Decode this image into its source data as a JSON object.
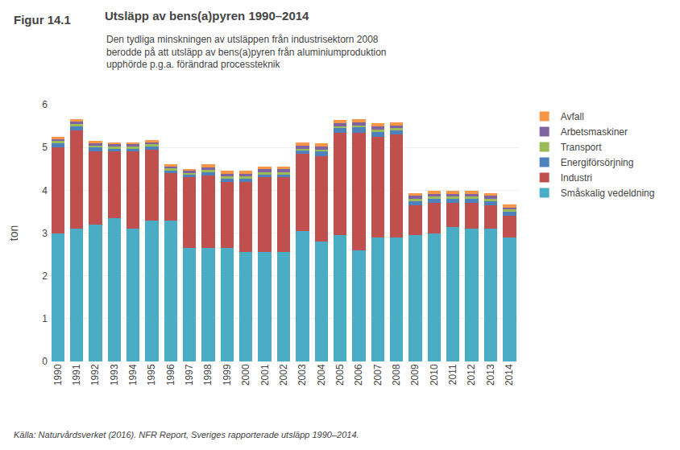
{
  "chart_data": {
    "type": "bar",
    "stacked": true,
    "title": "Utsläpp av bens(a)pyren 1990–2014",
    "subtitle": "Den tydliga minskningen av utsläppen från industrisektorn 2008\nberodde på att utsläpp av bens(a)pyren från aluminiumproduktion\nupphörde p.g.a. förändrad processteknik",
    "annotations": [
      "Figur 14.1",
      "Källa: Naturvårdsverket (2016). NFR Report, Sveriges rapporterade utsläpp 1990–2014."
    ],
    "ylabel": "ton",
    "categories": [
      "1990",
      "1991",
      "1992",
      "1993",
      "1994",
      "1995",
      "1996",
      "1997",
      "1998",
      "1999",
      "2000",
      "2001",
      "2002",
      "2003",
      "2004",
      "2005",
      "2006",
      "2007",
      "2008",
      "2009",
      "2010",
      "2011",
      "2012",
      "2013",
      "2014"
    ],
    "series": [
      {
        "name": "Småskalig vedeldning",
        "color": "#4BACC6",
        "values": [
          3.0,
          3.1,
          3.2,
          3.35,
          3.1,
          3.3,
          3.3,
          2.65,
          2.65,
          2.65,
          2.55,
          2.55,
          2.55,
          3.05,
          2.8,
          2.95,
          2.6,
          2.9,
          2.9,
          2.95,
          3.0,
          3.15,
          3.1,
          3.1,
          2.9
        ]
      },
      {
        "name": "Industri",
        "color": "#C0504D",
        "values": [
          2.0,
          2.3,
          1.7,
          1.55,
          1.8,
          1.65,
          1.1,
          1.65,
          1.7,
          1.55,
          1.65,
          1.75,
          1.75,
          1.8,
          2.0,
          2.4,
          2.75,
          2.35,
          2.4,
          0.7,
          0.7,
          0.55,
          0.6,
          0.55,
          0.5
        ]
      },
      {
        "name": "Energiförsörjning",
        "color": "#4F81BD",
        "values": [
          0.1,
          0.1,
          0.1,
          0.07,
          0.07,
          0.07,
          0.06,
          0.06,
          0.07,
          0.07,
          0.07,
          0.07,
          0.07,
          0.07,
          0.1,
          0.1,
          0.12,
          0.12,
          0.1,
          0.1,
          0.1,
          0.1,
          0.1,
          0.1,
          0.1
        ]
      },
      {
        "name": "Transport",
        "color": "#9BBB59",
        "values": [
          0.05,
          0.05,
          0.05,
          0.05,
          0.05,
          0.05,
          0.05,
          0.05,
          0.05,
          0.05,
          0.05,
          0.05,
          0.05,
          0.05,
          0.05,
          0.05,
          0.05,
          0.05,
          0.05,
          0.05,
          0.05,
          0.05,
          0.05,
          0.05,
          0.05
        ]
      },
      {
        "name": "Arbetsmaskiner",
        "color": "#8064A2",
        "values": [
          0.05,
          0.05,
          0.05,
          0.05,
          0.05,
          0.05,
          0.04,
          0.04,
          0.06,
          0.06,
          0.07,
          0.07,
          0.07,
          0.07,
          0.07,
          0.07,
          0.07,
          0.07,
          0.07,
          0.07,
          0.07,
          0.07,
          0.07,
          0.07,
          0.05
        ]
      },
      {
        "name": "Avfall",
        "color": "#F79646",
        "values": [
          0.05,
          0.07,
          0.05,
          0.05,
          0.05,
          0.06,
          0.05,
          0.05,
          0.07,
          0.07,
          0.07,
          0.07,
          0.07,
          0.07,
          0.07,
          0.07,
          0.07,
          0.07,
          0.07,
          0.07,
          0.07,
          0.07,
          0.07,
          0.07,
          0.07
        ]
      }
    ],
    "ylim": [
      0,
      6
    ],
    "yticks": [
      0,
      1,
      2,
      3,
      4,
      5,
      6
    ],
    "grid": true,
    "legend": "right"
  }
}
